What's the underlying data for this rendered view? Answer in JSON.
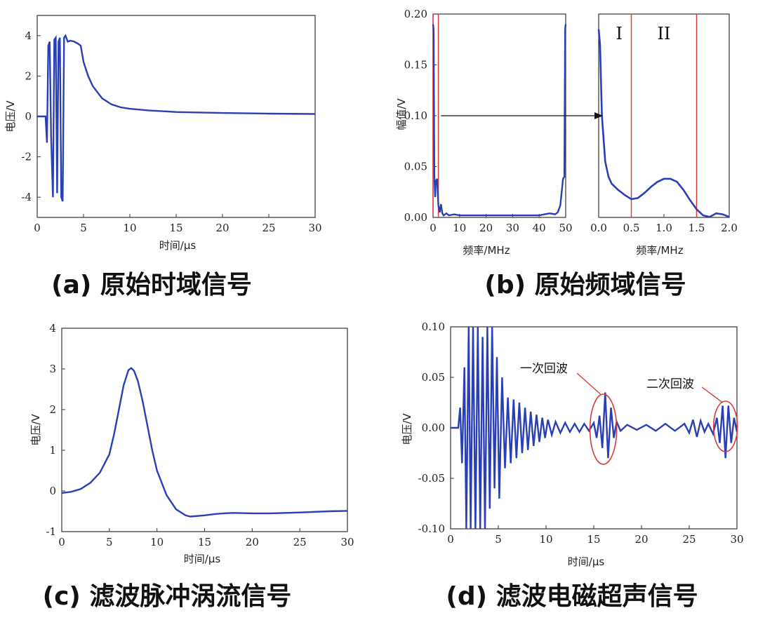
{
  "chart_data": [
    {
      "id": "a",
      "type": "line",
      "caption": "(a) 原始时域信号",
      "xlabel": "时间/μs",
      "ylabel": "电压/V",
      "xlim": [
        0,
        30
      ],
      "ylim": [
        -5,
        5
      ],
      "xticks": [
        0,
        5,
        10,
        15,
        20,
        25,
        30
      ],
      "yticks": [
        -4,
        -2,
        0,
        2,
        4
      ],
      "series": [
        {
          "color": "#2b3fb5",
          "x": [
            0,
            0.9,
            1.05,
            1.2,
            1.35,
            1.5,
            1.7,
            1.85,
            2.0,
            2.15,
            2.3,
            2.45,
            2.6,
            2.75,
            2.9,
            3.05,
            3.3,
            3.6,
            4.0,
            4.4,
            4.7,
            5.0,
            5.5,
            6.0,
            7.0,
            8.0,
            9.0,
            10.0,
            12.0,
            15.0,
            20.0,
            25.0,
            30.0
          ],
          "y": [
            0,
            0,
            -1.3,
            3.5,
            3.7,
            -1.0,
            -4.0,
            3.8,
            3.9,
            -3.8,
            3.7,
            3.9,
            -4.0,
            -4.2,
            3.9,
            4.0,
            3.7,
            3.75,
            3.7,
            3.6,
            3.5,
            2.7,
            2.0,
            1.5,
            0.9,
            0.6,
            0.45,
            0.38,
            0.3,
            0.22,
            0.17,
            0.14,
            0.12
          ]
        }
      ]
    },
    {
      "id": "b",
      "type": "line",
      "caption": "(b) 原始频域信号",
      "ylabel": "幅值/V",
      "panels": [
        {
          "xlabel": "频率/MHz",
          "xlim": [
            0,
            50
          ],
          "ylim": [
            0,
            0.2
          ],
          "xticks": [
            0,
            10,
            20,
            30,
            40,
            50
          ],
          "yticks": [
            0.0,
            0.05,
            0.1,
            0.15,
            0.2
          ],
          "x": [
            0,
            0.2,
            0.5,
            0.8,
            1.0,
            1.5,
            2.0,
            2.5,
            3.0,
            3.5,
            4.0,
            5,
            6,
            8,
            10,
            15,
            20,
            25,
            30,
            35,
            40,
            42,
            44,
            46,
            47,
            48,
            49,
            49.5,
            49.8,
            50
          ],
          "y": [
            0.19,
            0.185,
            0.04,
            0.02,
            0.035,
            0.038,
            0.012,
            0.005,
            0.013,
            0.004,
            0.002,
            0.004,
            0.002,
            0.003,
            0.002,
            0.002,
            0.002,
            0.002,
            0.002,
            0.002,
            0.002,
            0.003,
            0.004,
            0.003,
            0.005,
            0.012,
            0.038,
            0.04,
            0.185,
            0.19
          ]
        },
        {
          "xlabel": "频率/MHz",
          "xlim": [
            0,
            2
          ],
          "ylim": [
            0,
            0.2
          ],
          "xticks": [
            0.0,
            0.5,
            1.0,
            1.5,
            2.0
          ],
          "x": [
            0.0,
            0.02,
            0.05,
            0.1,
            0.15,
            0.2,
            0.3,
            0.4,
            0.5,
            0.6,
            0.7,
            0.8,
            0.9,
            1.0,
            1.1,
            1.2,
            1.3,
            1.4,
            1.5,
            1.6,
            1.7,
            1.8,
            1.9,
            2.0
          ],
          "y": [
            0.185,
            0.17,
            0.1,
            0.055,
            0.04,
            0.033,
            0.027,
            0.022,
            0.018,
            0.019,
            0.024,
            0.03,
            0.035,
            0.038,
            0.038,
            0.035,
            0.027,
            0.017,
            0.008,
            0.002,
            0.0005,
            0.004,
            0.003,
            0.0005
          ]
        }
      ],
      "red_lines_left": [
        0,
        2
      ],
      "red_lines_right": [
        0.5,
        1.5
      ],
      "regions": [
        "I",
        "II"
      ],
      "arrow_y": 0.1
    },
    {
      "id": "c",
      "type": "line",
      "caption": "(c) 滤波脉冲涡流信号",
      "xlabel": "时间/μs",
      "ylabel": "电压/V",
      "xlim": [
        0,
        30
      ],
      "ylim": [
        -1,
        4
      ],
      "xticks": [
        0,
        5,
        10,
        15,
        20,
        25,
        30
      ],
      "yticks": [
        -1,
        0,
        1,
        2,
        3,
        4
      ],
      "series": [
        {
          "color": "#2b3fb5",
          "x": [
            0,
            1,
            2,
            3,
            4,
            5,
            5.5,
            6,
            6.5,
            7,
            7.3,
            7.6,
            8,
            8.5,
            9,
            9.5,
            10,
            11,
            12,
            13,
            13.5,
            14,
            15,
            16,
            17,
            18,
            20,
            22,
            25,
            28,
            30
          ],
          "y": [
            -0.05,
            -0.02,
            0.05,
            0.2,
            0.45,
            0.9,
            1.4,
            2.0,
            2.6,
            2.97,
            3.02,
            2.95,
            2.7,
            2.2,
            1.6,
            1.0,
            0.5,
            -0.1,
            -0.45,
            -0.6,
            -0.63,
            -0.62,
            -0.6,
            -0.57,
            -0.55,
            -0.54,
            -0.55,
            -0.55,
            -0.53,
            -0.5,
            -0.49
          ]
        }
      ]
    },
    {
      "id": "d",
      "type": "line",
      "caption": "(d) 滤波电磁超声信号",
      "xlabel": "时间/μs",
      "ylabel": "电压/V",
      "xlim": [
        0,
        30
      ],
      "ylim": [
        -0.1,
        0.1
      ],
      "xticks": [
        0,
        5,
        10,
        15,
        20,
        25,
        30
      ],
      "yticks": [
        -0.1,
        -0.05,
        0.0,
        0.05,
        0.1
      ],
      "annotations": [
        {
          "text": "一次回波",
          "x": 16.0,
          "y": 0.0
        },
        {
          "text": "二次回波",
          "x": 28.8,
          "y": 0.0
        }
      ],
      "series": [
        {
          "color": "#2b3fb5",
          "x": [
            0,
            0.8,
            1.0,
            1.2,
            1.45,
            1.65,
            1.9,
            2.1,
            2.35,
            2.6,
            2.85,
            3.1,
            3.35,
            3.6,
            3.85,
            4.1,
            4.35,
            4.6,
            4.85,
            5.1,
            5.4,
            5.7,
            6.0,
            6.3,
            6.6,
            6.9,
            7.2,
            7.5,
            7.8,
            8.1,
            8.4,
            8.7,
            9.0,
            9.3,
            9.6,
            9.9,
            10.2,
            10.6,
            11.0,
            11.5,
            12.0,
            12.5,
            13.0,
            13.5,
            14.0,
            14.5,
            15.0,
            15.3,
            15.6,
            15.9,
            16.2,
            16.5,
            16.8,
            17.1,
            17.4,
            17.8,
            18.5,
            19.5,
            20.5,
            21.5,
            22.5,
            23.5,
            24.5,
            25.0,
            25.4,
            25.8,
            26.2,
            26.6,
            27.0,
            27.5,
            27.9,
            28.2,
            28.5,
            28.8,
            29.1,
            29.4,
            29.7,
            30.0
          ],
          "y": [
            0,
            0,
            0.02,
            -0.035,
            0.06,
            -0.1,
            0.1,
            -0.1,
            0.1,
            -0.1,
            0.1,
            -0.1,
            0.09,
            -0.1,
            0.1,
            -0.08,
            0.1,
            -0.06,
            0.07,
            -0.07,
            0.05,
            -0.04,
            0.03,
            -0.035,
            0.028,
            -0.03,
            0.025,
            -0.025,
            0.02,
            -0.022,
            0.016,
            -0.018,
            0.013,
            -0.014,
            0.01,
            -0.01,
            0.008,
            -0.007,
            0.006,
            -0.005,
            0.005,
            -0.004,
            0.004,
            -0.004,
            0.004,
            -0.003,
            0.005,
            -0.01,
            0.012,
            -0.02,
            0.035,
            -0.03,
            0.02,
            -0.01,
            0.006,
            -0.003,
            0.003,
            -0.002,
            0.003,
            -0.003,
            0.004,
            -0.003,
            0.004,
            -0.005,
            0.008,
            -0.009,
            0.007,
            -0.004,
            0.004,
            -0.006,
            0.01,
            -0.015,
            0.022,
            -0.03,
            0.022,
            -0.015,
            0.01,
            -0.004
          ]
        }
      ]
    }
  ]
}
